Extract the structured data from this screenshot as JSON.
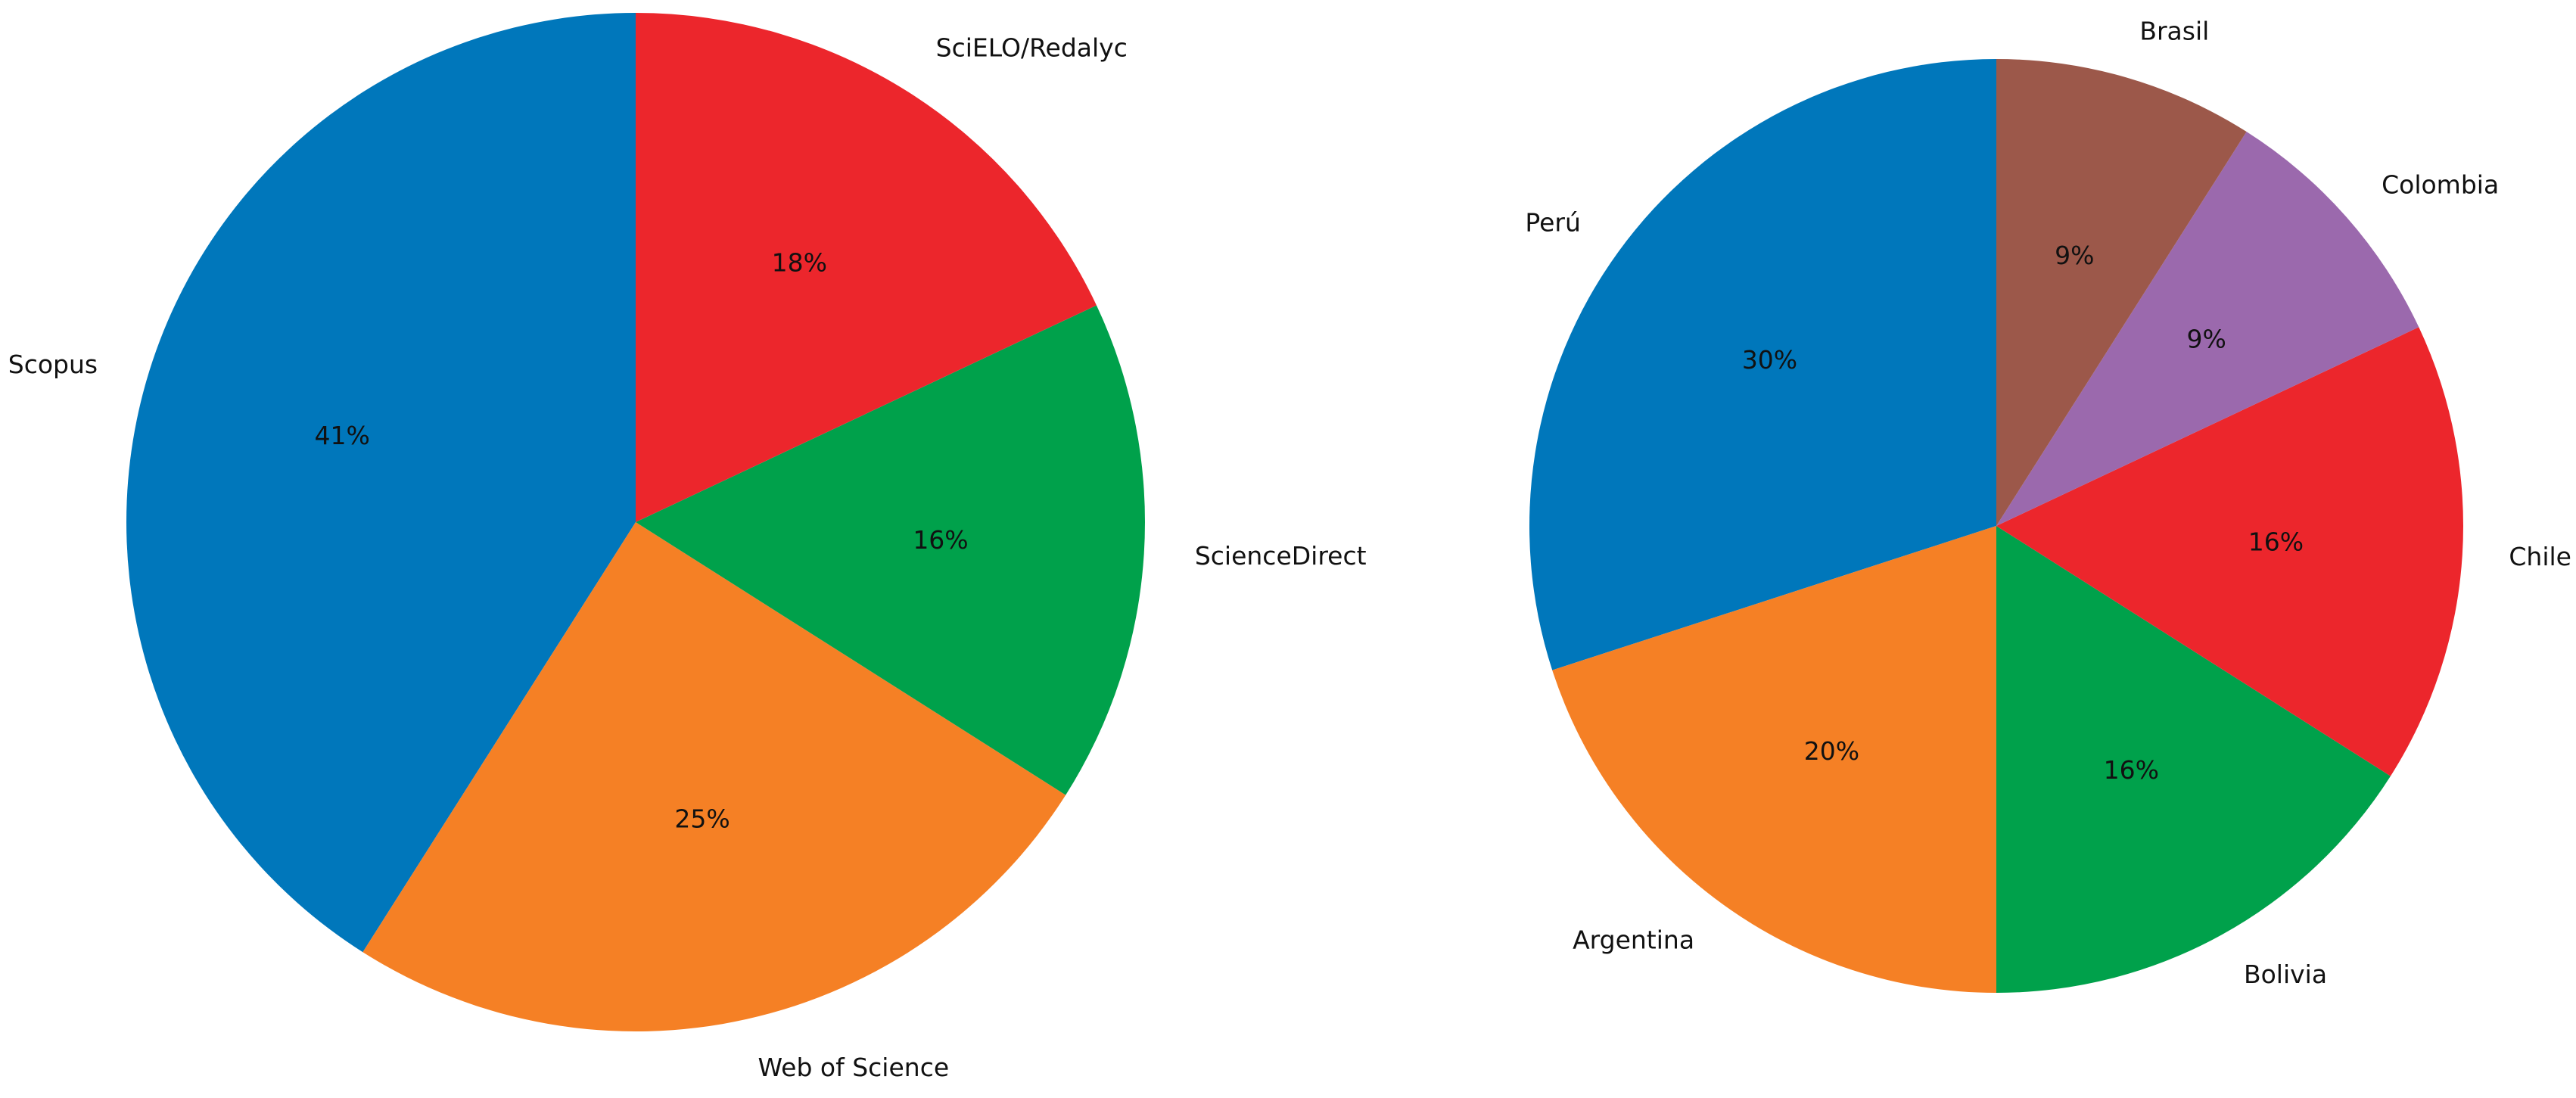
{
  "chart_data": [
    {
      "type": "pie",
      "categories": [
        "Scopus",
        "Web of Science",
        "ScienceDirect",
        "SciELO/Redalyc"
      ],
      "values": [
        41,
        25,
        16,
        18
      ],
      "value_labels": [
        "41%",
        "25%",
        "16%",
        "18%"
      ],
      "colors": [
        "#0077bb",
        "#f58025",
        "#00a14b",
        "#ec262c"
      ]
    },
    {
      "type": "pie",
      "categories": [
        "Perú",
        "Argentina",
        "Bolivia",
        "Chile",
        "Colombia",
        "Brasil"
      ],
      "values": [
        30,
        20,
        16,
        16,
        9,
        9
      ],
      "value_labels": [
        "30%",
        "20%",
        "16%",
        "16%",
        "9%",
        "9%"
      ],
      "colors": [
        "#0077bb",
        "#f58025",
        "#00a14b",
        "#ec262c",
        "#9b69ad",
        "#9c584a"
      ]
    }
  ]
}
